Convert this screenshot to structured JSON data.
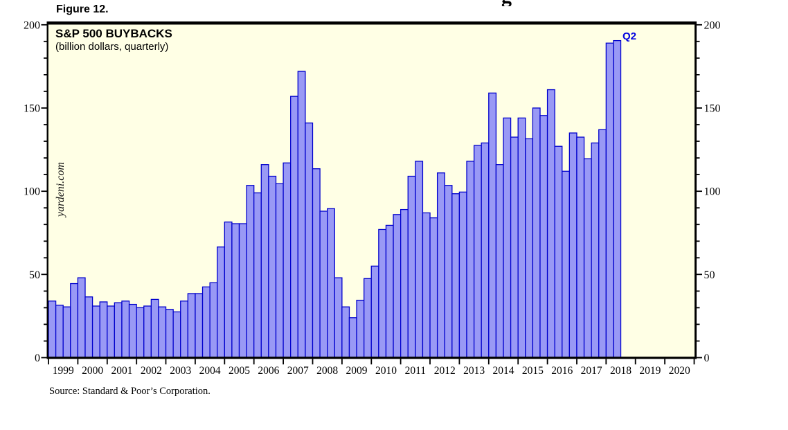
{
  "figure_label": "Figure 12.",
  "cropped_text_fragment": "g",
  "chart": {
    "title": "S&P 500 BUYBACKS",
    "subtitle": "(billion dollars, quarterly)",
    "watermark": "yardeni.com",
    "latest_point_label": "Q2",
    "source": "Source: Standard & Poor’s Corporation."
  },
  "colors": {
    "plot_background": "#FFFFE5",
    "bar_fill": "#9999F5",
    "bar_border": "#0000CC",
    "frame": "#000000",
    "annotation_blue": "#0000E0",
    "page_background": "#FFFFFF"
  },
  "chart_data": {
    "type": "bar",
    "title": "S&P 500 BUYBACKS",
    "subtitle": "(billion dollars, quarterly)",
    "ylabel": "billion dollars",
    "ylim": [
      0,
      200
    ],
    "y_major_ticks": [
      0,
      50,
      100,
      150,
      200
    ],
    "y_minor_tick_step": 10,
    "y_axis_labels_both_sides": true,
    "grid": false,
    "x_label_years": [
      "1999",
      "2000",
      "2001",
      "2002",
      "2003",
      "2004",
      "2005",
      "2006",
      "2007",
      "2008",
      "2009",
      "2010",
      "2011",
      "2012",
      "2013",
      "2014",
      "2015",
      "2016",
      "2017",
      "2018",
      "2019",
      "2020"
    ],
    "first_quarter": "1999-Q1",
    "last_quarter": "2018-Q2",
    "annotation": {
      "text": "Q2",
      "target": "2018-Q2"
    },
    "values": [
      34,
      31.5,
      30.5,
      44.5,
      48,
      36.5,
      31,
      33.5,
      31,
      33,
      34,
      32,
      30,
      31,
      35,
      30.5,
      29,
      27.5,
      34,
      38.5,
      38.5,
      42.5,
      45,
      66.5,
      81.5,
      80.5,
      80.5,
      103.5,
      99,
      116,
      109,
      104.5,
      117,
      157,
      172,
      141,
      113.5,
      88,
      89.5,
      48,
      30.5,
      24,
      34.5,
      47.5,
      55,
      77,
      79.5,
      86,
      89,
      109,
      118,
      87,
      84,
      111,
      103.5,
      98.5,
      99.5,
      118,
      127.5,
      129,
      159,
      116,
      144,
      132.5,
      144,
      131.5,
      150,
      145.5,
      161,
      127,
      112,
      135,
      132.5,
      119.5,
      129,
      137,
      189,
      190.5
    ]
  }
}
